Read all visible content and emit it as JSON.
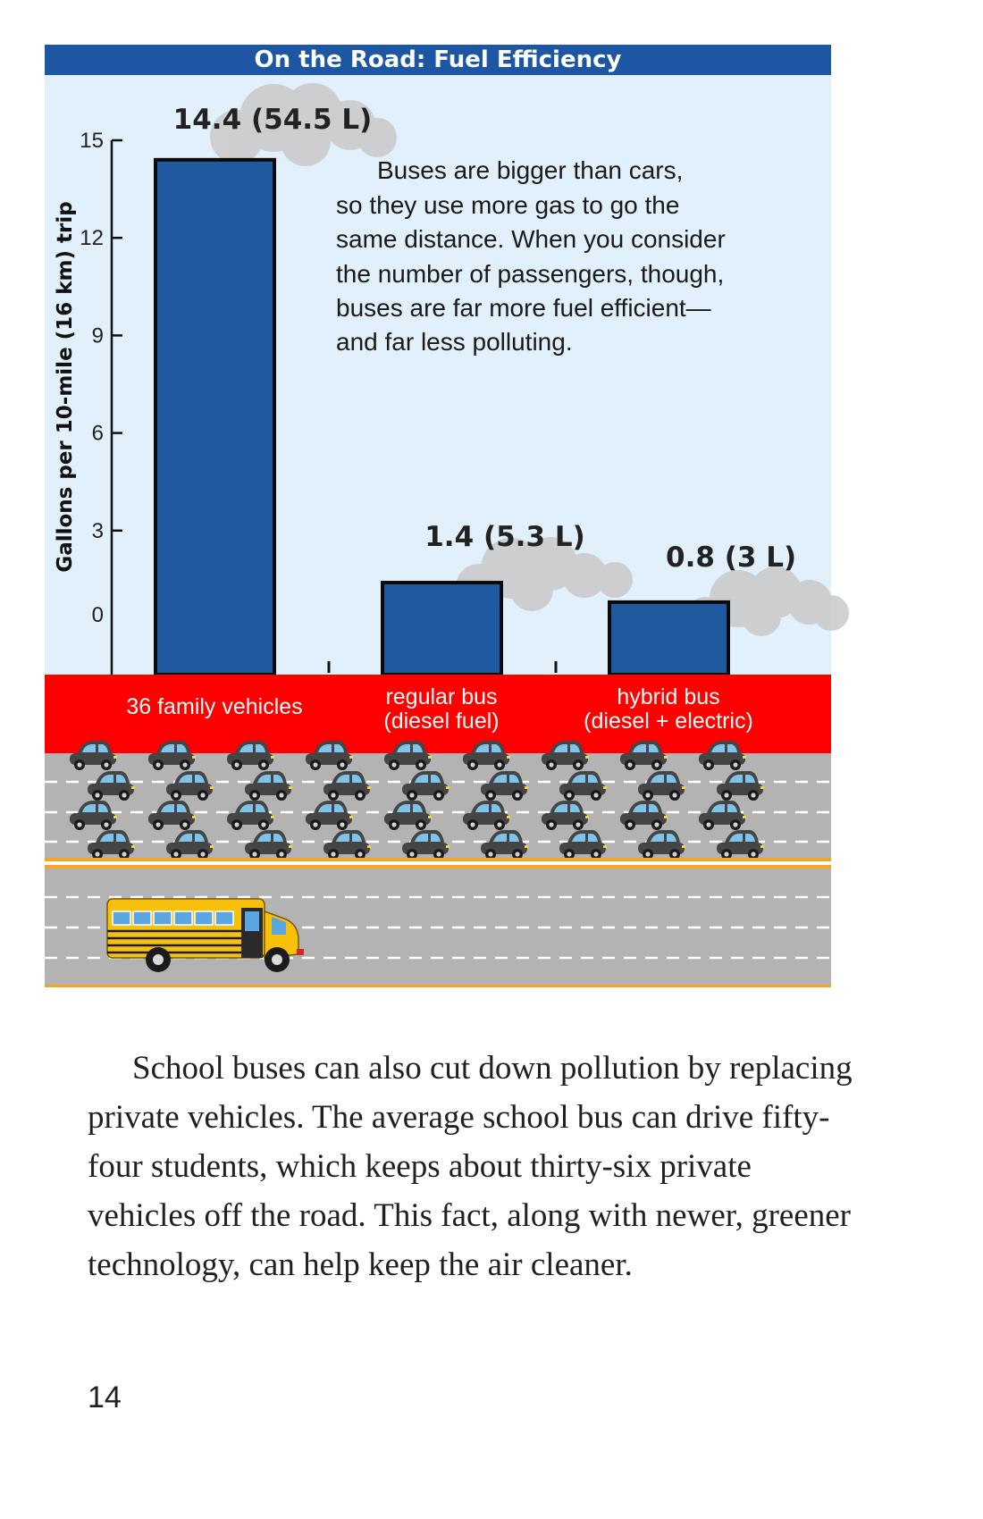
{
  "chart_data": {
    "type": "bar",
    "title": "On the Road: Fuel Efficiency",
    "ylabel": "Gallons per 10-mile (16 km) trip",
    "xlabel": "",
    "ylim": [
      0,
      15
    ],
    "yticks": [
      0,
      3,
      6,
      9,
      12,
      15
    ],
    "categories": [
      {
        "line1": "36 family vehicles",
        "line2": ""
      },
      {
        "line1": "regular bus",
        "line2": "(diesel fuel)"
      },
      {
        "line1": "hybrid bus",
        "line2": "(diesel + electric)"
      }
    ],
    "values": [
      14.4,
      1.4,
      0.8
    ],
    "value_labels": [
      "14.4 (54.5 L)",
      "1.4 (5.3 L)",
      "0.8 (3 L)"
    ],
    "bar_color": "#1f5aa0",
    "grid": false,
    "annotation": [
      "Buses are bigger than cars,",
      "so they use more gas to go the",
      "same distance. When you consider",
      "the number of passengers, though,",
      "buses are far more fuel efficient—",
      "and far less polluting."
    ],
    "illustration": {
      "cars_count": 36,
      "car_icon": "car-icon",
      "bus_icon": "school-bus-icon"
    }
  },
  "colors": {
    "title_bar": "#1d56a3",
    "chart_background": "#e1f0fb",
    "category_band": "#ff0000",
    "road": "#b3b3b3",
    "road_edge": "#f4a623",
    "car_body": "#454545",
    "bus_body": "#f7c10b"
  },
  "body_text": "School buses can also cut down pollution by replacing private vehicles. The average school bus can drive fifty-four students, which keeps about thirty-six private vehicles off the road. This fact, along with newer, greener technology, can help keep the air cleaner.",
  "page_number": "14"
}
